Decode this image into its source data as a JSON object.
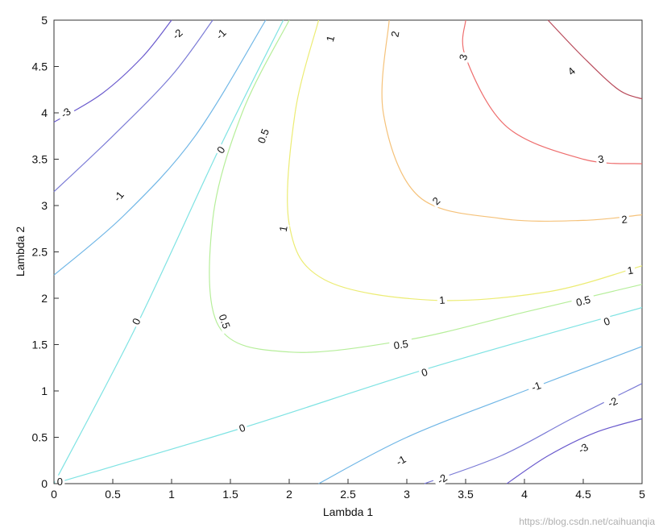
{
  "chart_data": {
    "type": "contour",
    "xlabel": "Lambda 1",
    "ylabel": "Lambda 2",
    "xlim": [
      0,
      5
    ],
    "ylim": [
      0,
      5
    ],
    "xticks": [
      "0",
      "0.5",
      "1",
      "1.5",
      "2",
      "2.5",
      "3",
      "3.5",
      "4",
      "4.5",
      "5"
    ],
    "yticks": [
      "0",
      "0.5",
      "1",
      "1.5",
      "2",
      "2.5",
      "3",
      "3.5",
      "4",
      "4.5",
      "5"
    ],
    "grid": false,
    "levels": [
      {
        "value": -3,
        "color": "#6a5acd",
        "curves": [
          [
            [
              0,
              3.9
            ],
            [
              0.4,
              4.2
            ],
            [
              0.75,
              4.6
            ],
            [
              1.0,
              5
            ]
          ],
          [
            [
              3.85,
              0
            ],
            [
              4.2,
              0.3
            ],
            [
              4.6,
              0.55
            ],
            [
              5,
              0.7
            ]
          ]
        ]
      },
      {
        "value": -2,
        "color": "#7b7bd6",
        "curves": [
          [
            [
              0,
              3.15
            ],
            [
              0.5,
              3.75
            ],
            [
              1.0,
              4.4
            ],
            [
              1.35,
              5
            ]
          ],
          [
            [
              3.15,
              0
            ],
            [
              3.8,
              0.3
            ],
            [
              4.4,
              0.7
            ],
            [
              5,
              1.08
            ]
          ]
        ]
      },
      {
        "value": -1,
        "color": "#6fb6e6",
        "curves": [
          [
            [
              0,
              2.25
            ],
            [
              0.6,
              2.9
            ],
            [
              1.2,
              3.75
            ],
            [
              1.8,
              5
            ]
          ],
          [
            [
              2.25,
              0
            ],
            [
              3.0,
              0.5
            ],
            [
              4.0,
              1.0
            ],
            [
              5,
              1.48
            ]
          ]
        ]
      },
      {
        "value": 0,
        "color": "#7fe3e3",
        "curves": [
          [
            [
              0,
              0
            ],
            [
              0.7,
              1.7
            ],
            [
              1.4,
              3.6
            ],
            [
              1.95,
              5
            ]
          ],
          [
            [
              0,
              0
            ],
            [
              1.6,
              0.6
            ],
            [
              3.2,
              1.25
            ],
            [
              5,
              1.9
            ]
          ]
        ]
      },
      {
        "value": 0.5,
        "color": "#b6ee9a",
        "curves": [
          [
            [
              2.0,
              5
            ],
            [
              1.6,
              4.0
            ],
            [
              1.35,
              2.85
            ],
            [
              1.4,
              1.7
            ],
            [
              2.0,
              1.42
            ],
            [
              3.0,
              1.55
            ],
            [
              4.0,
              1.85
            ],
            [
              5,
              2.15
            ]
          ]
        ]
      },
      {
        "value": 1,
        "color": "#ecec74",
        "curves": [
          [
            [
              2.25,
              5
            ],
            [
              2.05,
              4.0
            ],
            [
              2.0,
              2.8
            ],
            [
              2.3,
              2.2
            ],
            [
              3.2,
              1.98
            ],
            [
              4.2,
              2.07
            ],
            [
              5,
              2.35
            ]
          ]
        ]
      },
      {
        "value": 2,
        "color": "#f5c27a",
        "curves": [
          [
            [
              2.85,
              5
            ],
            [
              2.8,
              4.0
            ],
            [
              3.1,
              3.1
            ],
            [
              3.8,
              2.86
            ],
            [
              4.5,
              2.84
            ],
            [
              5,
              2.9
            ]
          ]
        ]
      },
      {
        "value": 3,
        "color": "#ee6e6e",
        "curves": [
          [
            [
              3.5,
              5
            ],
            [
              3.5,
              4.6
            ],
            [
              3.85,
              3.85
            ],
            [
              4.5,
              3.5
            ],
            [
              5,
              3.45
            ]
          ]
        ]
      },
      {
        "value": 4,
        "color": "#b84a5a",
        "curves": [
          [
            [
              4.2,
              5
            ],
            [
              4.5,
              4.6
            ],
            [
              4.8,
              4.25
            ],
            [
              5,
              4.15
            ]
          ]
        ]
      }
    ],
    "level_labels": [
      {
        "text": "-3",
        "x": 0.1,
        "y": 4.0,
        "angle": -35
      },
      {
        "text": "-2",
        "x": 1.05,
        "y": 4.85,
        "angle": -40
      },
      {
        "text": "-1",
        "x": 1.42,
        "y": 4.85,
        "angle": -45
      },
      {
        "text": "0",
        "x": 1.42,
        "y": 3.6,
        "angle": -55
      },
      {
        "text": "0.5",
        "x": 1.78,
        "y": 3.75,
        "angle": -70
      },
      {
        "text": "1",
        "x": 2.35,
        "y": 4.8,
        "angle": -75
      },
      {
        "text": "2",
        "x": 2.9,
        "y": 4.85,
        "angle": -80
      },
      {
        "text": "3",
        "x": 3.48,
        "y": 4.6,
        "angle": -75
      },
      {
        "text": "4",
        "x": 4.4,
        "y": 4.45,
        "angle": -40
      },
      {
        "text": "-1",
        "x": 0.55,
        "y": 3.1,
        "angle": -50
      },
      {
        "text": "1",
        "x": 1.95,
        "y": 2.75,
        "angle": -80
      },
      {
        "text": "2",
        "x": 3.25,
        "y": 3.05,
        "angle": -45
      },
      {
        "text": "3",
        "x": 4.65,
        "y": 3.5,
        "angle": -10
      },
      {
        "text": "2",
        "x": 4.85,
        "y": 2.85,
        "angle": -5
      },
      {
        "text": "1",
        "x": 4.9,
        "y": 2.3,
        "angle": -10
      },
      {
        "text": "0.5",
        "x": 4.5,
        "y": 1.97,
        "angle": -15
      },
      {
        "text": "0",
        "x": 4.7,
        "y": 1.75,
        "angle": -20
      },
      {
        "text": "1",
        "x": 3.3,
        "y": 1.98,
        "angle": -5
      },
      {
        "text": "0.5",
        "x": 1.45,
        "y": 1.75,
        "angle": 70
      },
      {
        "text": "0",
        "x": 0.7,
        "y": 1.75,
        "angle": -65
      },
      {
        "text": "0.5",
        "x": 2.95,
        "y": 1.5,
        "angle": -8
      },
      {
        "text": "0",
        "x": 3.15,
        "y": 1.2,
        "angle": -18
      },
      {
        "text": "0",
        "x": 1.6,
        "y": 0.6,
        "angle": -20
      },
      {
        "text": "-1",
        "x": 4.1,
        "y": 1.05,
        "angle": -20
      },
      {
        "text": "-2",
        "x": 4.75,
        "y": 0.88,
        "angle": -25
      },
      {
        "text": "-1",
        "x": 2.95,
        "y": 0.25,
        "angle": -30
      },
      {
        "text": "-2",
        "x": 3.3,
        "y": 0.05,
        "angle": -35
      },
      {
        "text": "-3",
        "x": 4.5,
        "y": 0.38,
        "angle": -30
      },
      {
        "text": "0",
        "x": 0.05,
        "y": 0.02,
        "angle": 0
      }
    ]
  },
  "watermark": "https://blog.csdn.net/caihuanqia"
}
